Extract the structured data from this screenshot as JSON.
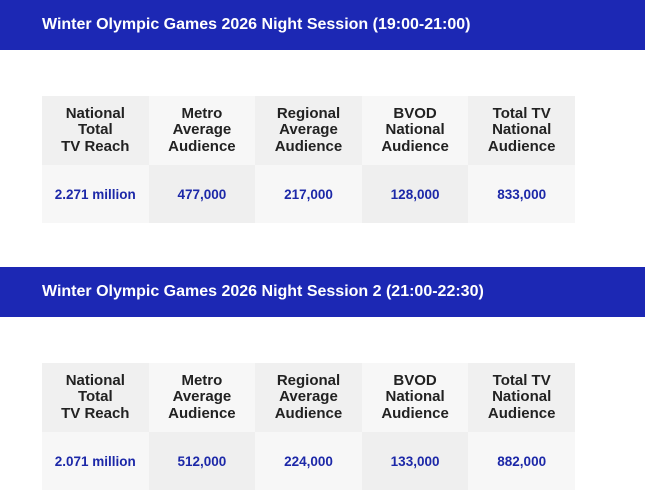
{
  "sessions": [
    {
      "title": "Winter Olympic Games 2026 Night Session (19:00-21:00)",
      "headers": [
        [
          "National",
          "Total",
          "TV Reach"
        ],
        [
          "Metro",
          "Average",
          "Audience"
        ],
        [
          "Regional",
          "Average",
          "Audience"
        ],
        [
          "BVOD",
          "National",
          "Audience"
        ],
        [
          "Total TV",
          "National",
          "Audience"
        ]
      ],
      "values": [
        "2.271 million",
        "477,000",
        "217,000",
        "128,000",
        "833,000"
      ]
    },
    {
      "title": "Winter Olympic Games 2026 Night Session 2 (21:00-22:30)",
      "headers": [
        [
          "National",
          "Total",
          "TV Reach"
        ],
        [
          "Metro",
          "Average",
          "Audience"
        ],
        [
          "Regional",
          "Average",
          "Audience"
        ],
        [
          "BVOD",
          "National",
          "Audience"
        ],
        [
          "Total TV",
          "National",
          "Audience"
        ]
      ],
      "values": [
        "2.071 million",
        "512,000",
        "224,000",
        "133,000",
        "882,000"
      ]
    }
  ],
  "colors": {
    "banner": "#1c28b4",
    "value_text": "#1c28a8",
    "header_text": "#222222"
  }
}
